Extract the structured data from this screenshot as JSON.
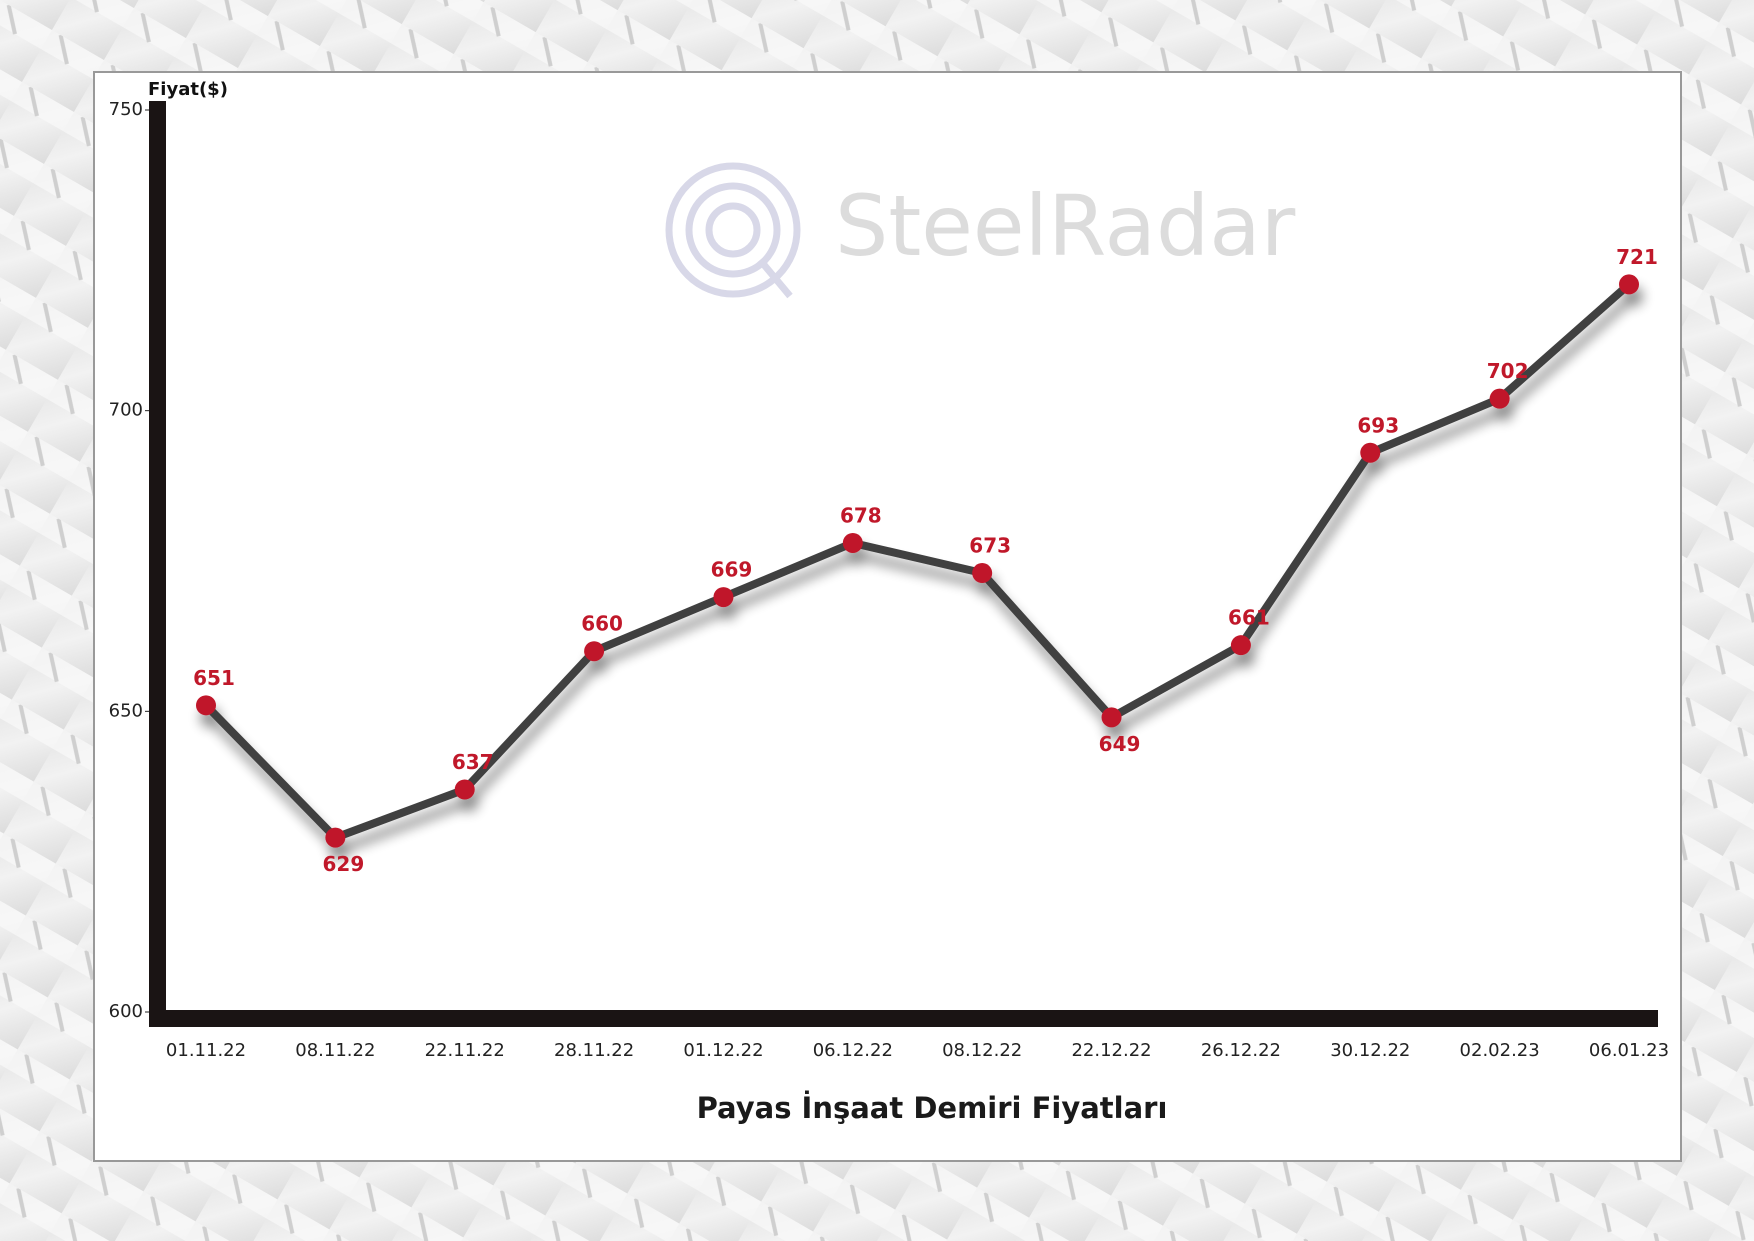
{
  "chart_data": {
    "type": "line",
    "title": "Payas İnşaat Demiri Fiyatları",
    "y_label": "Fiyat($)",
    "watermark": "SteelRadar",
    "categories": [
      "01.11.22",
      "08.11.22",
      "22.11.22",
      "28.11.22",
      "01.12.22",
      "06.12.22",
      "08.12.22",
      "22.12.22",
      "26.12.22",
      "30.12.22",
      "02.02.23",
      "06.01.23"
    ],
    "series": [
      {
        "name": "Fiyat",
        "color": "#404040",
        "marker_color": "#c0182a",
        "values": [
          651,
          629,
          637,
          660,
          669,
          678,
          673,
          649,
          661,
          693,
          702,
          721
        ]
      }
    ],
    "ylim": [
      600,
      750
    ],
    "yticks": [
      600,
      650,
      700,
      750
    ],
    "grid": false
  }
}
